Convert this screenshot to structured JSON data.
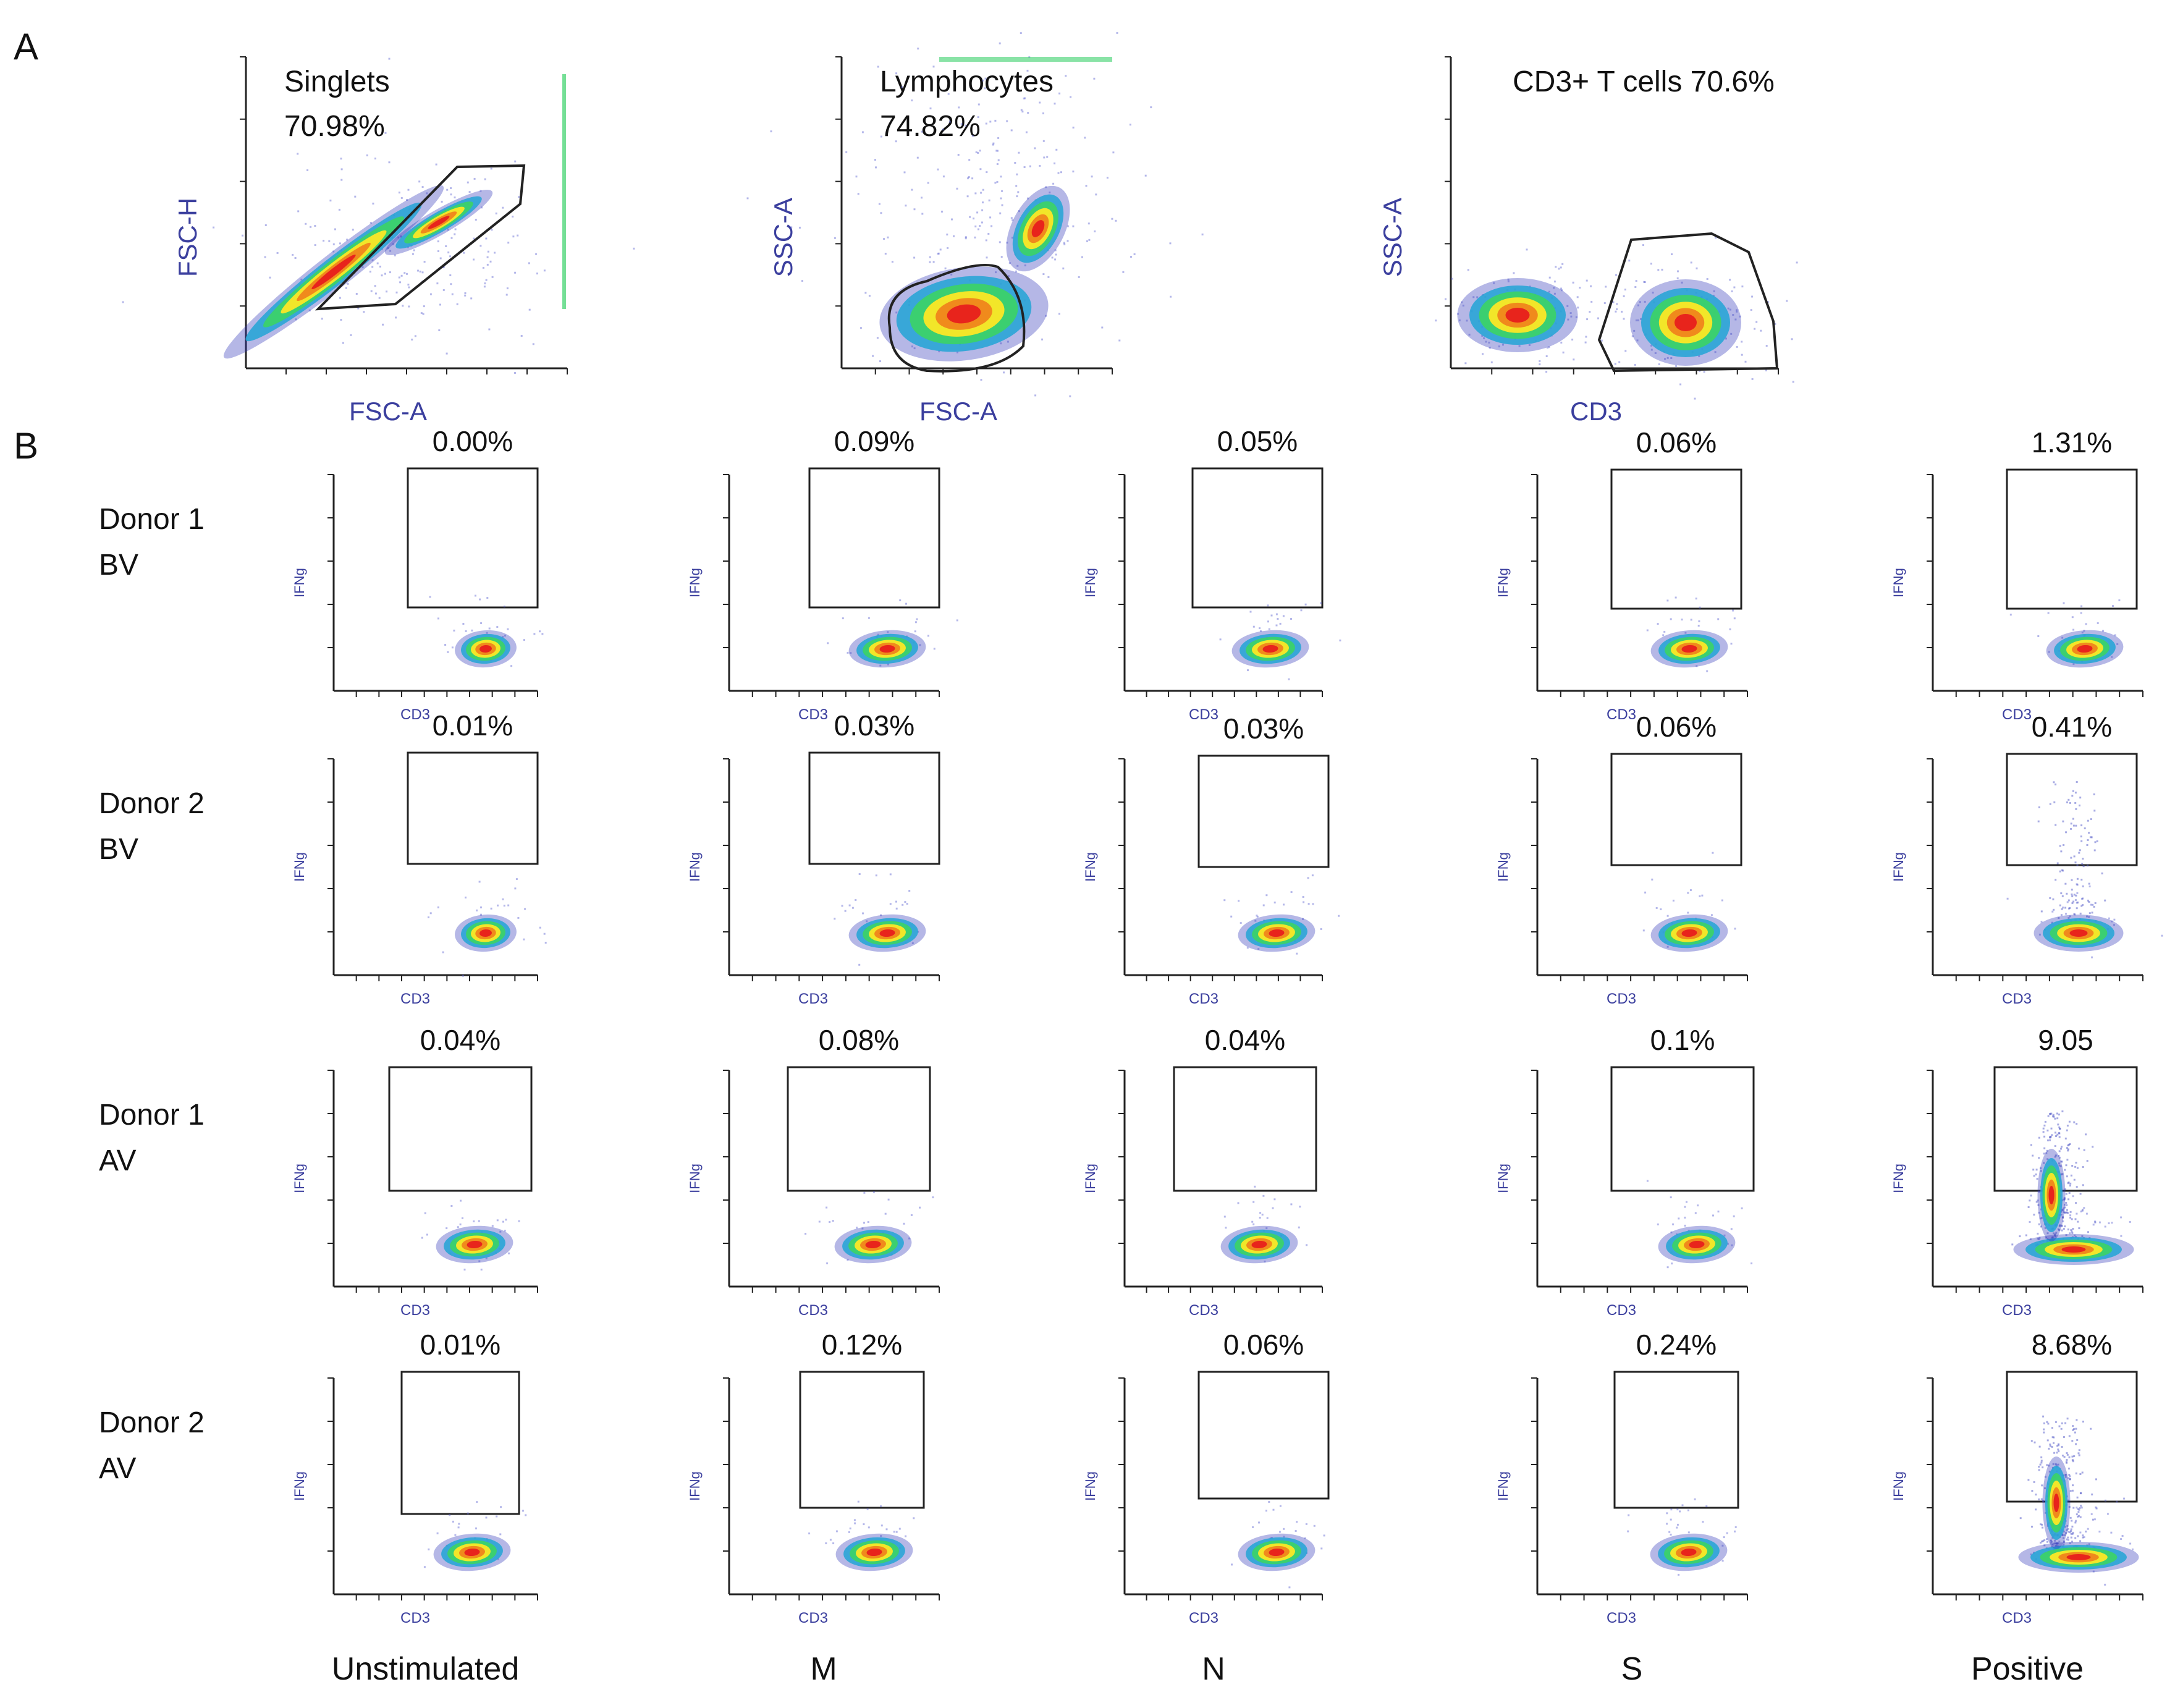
{
  "panel_labels": {
    "a": "A",
    "b": "B"
  },
  "colors": {
    "axis": "#222222",
    "axis_label": "#3b3f9e",
    "gate": "#222222",
    "density": [
      "#2b32b8",
      "#2aa5d6",
      "#3bd16a",
      "#f2e629",
      "#f08a1c",
      "#e8241c"
    ]
  },
  "chart_data": [
    {
      "type": "scatter",
      "panel": "A",
      "id": "singlets",
      "xlabel": "FSC-A",
      "ylabel": "FSC-H",
      "gate_name": "Singlets",
      "gate_value": "70.98%"
    },
    {
      "type": "scatter",
      "panel": "A",
      "id": "lymphocytes",
      "xlabel": "FSC-A",
      "ylabel": "SSC-A",
      "gate_name": "Lymphocytes",
      "gate_value": "74.82%"
    },
    {
      "type": "scatter",
      "panel": "A",
      "id": "cd3",
      "xlabel": "CD3",
      "ylabel": "SSC-A",
      "gate_name": "CD3+ T cells 70.6%"
    },
    {
      "type": "scatter",
      "panel": "B",
      "id": "ifng_grid",
      "xlabel": "CD3",
      "columns": [
        "Unstimulated",
        "M",
        "N",
        "S",
        "Positive"
      ],
      "rows": [
        {
          "donor": "Donor 1",
          "group": "BV",
          "ylabel": "IFNg",
          "values": [
            "0.00%",
            "0.09%",
            "0.05%",
            "0.06%",
            "1.31%"
          ]
        },
        {
          "donor": "Donor 2",
          "group": "BV",
          "ylabel": "IFNg",
          "values": [
            "0.01%",
            "0.03%",
            "0.03%",
            "0.06%",
            "0.41%"
          ]
        },
        {
          "donor": "Donor 1",
          "group": "AV",
          "ylabel": "IFNg",
          "values": [
            "0.04%",
            "0.08%",
            "0.04%",
            "0.1%",
            "9.05"
          ]
        },
        {
          "donor": "Donor 2",
          "group": "AV",
          "ylabel": "IFNg",
          "values": [
            "0.01%",
            "0.12%",
            "0.06%",
            "0.24%",
            "8.68%"
          ]
        }
      ]
    }
  ]
}
